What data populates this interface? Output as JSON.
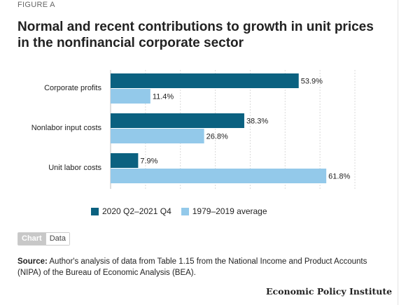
{
  "figure_label": "FIGURE A",
  "title": "Normal and recent contributions to growth in unit prices in the nonfinancial corporate sector",
  "chart_data": {
    "type": "bar",
    "orientation": "horizontal",
    "categories": [
      "Corporate profits",
      "Nonlabor input costs",
      "Unit labor costs"
    ],
    "series": [
      {
        "name": "2020 Q2–2021 Q4",
        "values": [
          53.9,
          38.3,
          7.9
        ],
        "labels": [
          "53.9%",
          "38.3%",
          "7.9%"
        ],
        "color": "#0b6180"
      },
      {
        "name": "1979–2019 average",
        "values": [
          11.4,
          26.8,
          61.8
        ],
        "labels": [
          "11.4%",
          "26.8%",
          "61.8%"
        ],
        "color": "#93c9ea"
      }
    ],
    "xlim": [
      0,
      70
    ],
    "grid": true,
    "legend_position": "bottom"
  },
  "toggle": {
    "chart_label": "Chart",
    "data_label": "Data"
  },
  "source": {
    "label": "Source:",
    "text": "Author's analysis of data from Table 1.15 from the National Income and Product Accounts (NIPA) of the Bureau of Economic Analysis (BEA)."
  },
  "brand": "Economic Policy Institute"
}
